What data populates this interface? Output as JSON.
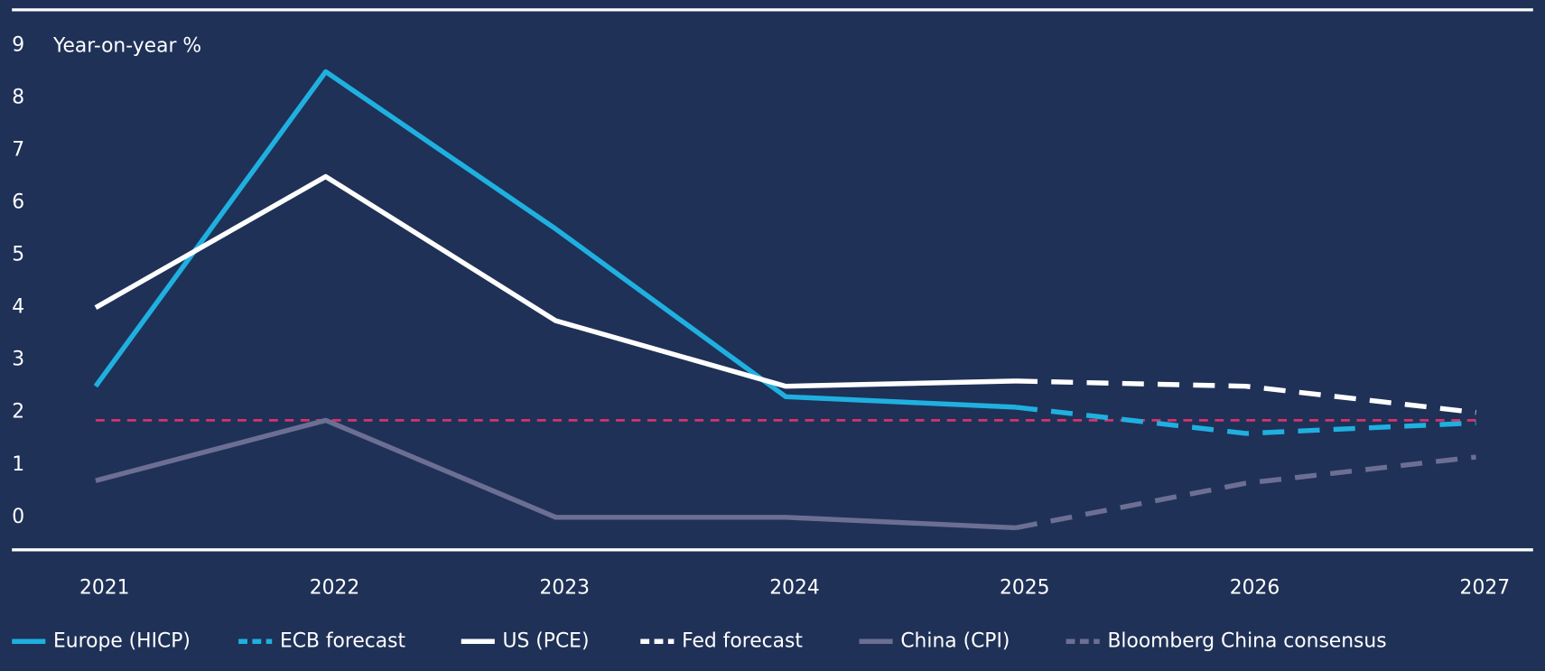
{
  "chart_data": {
    "type": "line",
    "y_label": "Year-on-year %",
    "categories": [
      "2021",
      "2022",
      "2023",
      "2024",
      "2025",
      "2026",
      "2027"
    ],
    "series": [
      {
        "name": "Europe (HICP)",
        "color": "#1fb0e0",
        "dash": false,
        "values": [
          2.5,
          8.5,
          5.5,
          2.3,
          2.1,
          null,
          null
        ]
      },
      {
        "name": "ECB forecast",
        "color": "#1fb0e0",
        "dash": true,
        "values": [
          null,
          null,
          null,
          null,
          2.1,
          1.6,
          1.8
        ]
      },
      {
        "name": "US (PCE)",
        "color": "#ffffff",
        "dash": false,
        "values": [
          4.0,
          6.5,
          3.75,
          2.5,
          2.6,
          null,
          null
        ]
      },
      {
        "name": "Fed forecast",
        "color": "#ffffff",
        "dash": true,
        "values": [
          null,
          null,
          null,
          null,
          2.6,
          2.5,
          2.0
        ]
      },
      {
        "name": "China (CPI)",
        "color": "#6c6f93",
        "dash": false,
        "values": [
          0.7,
          1.85,
          0,
          0,
          -0.2,
          null,
          null
        ]
      },
      {
        "name": "Bloomberg China consensus",
        "color": "#6c6f93",
        "dash": true,
        "values": [
          null,
          null,
          null,
          null,
          -0.2,
          0.65,
          1.15
        ]
      }
    ],
    "reference_line": {
      "value": 1.85,
      "color": "#d6336c"
    },
    "ylim": [
      -0.62,
      9.68
    ],
    "yticks": [
      0,
      1,
      2,
      3,
      4,
      5,
      6,
      7,
      8,
      9
    ],
    "grid": false
  }
}
